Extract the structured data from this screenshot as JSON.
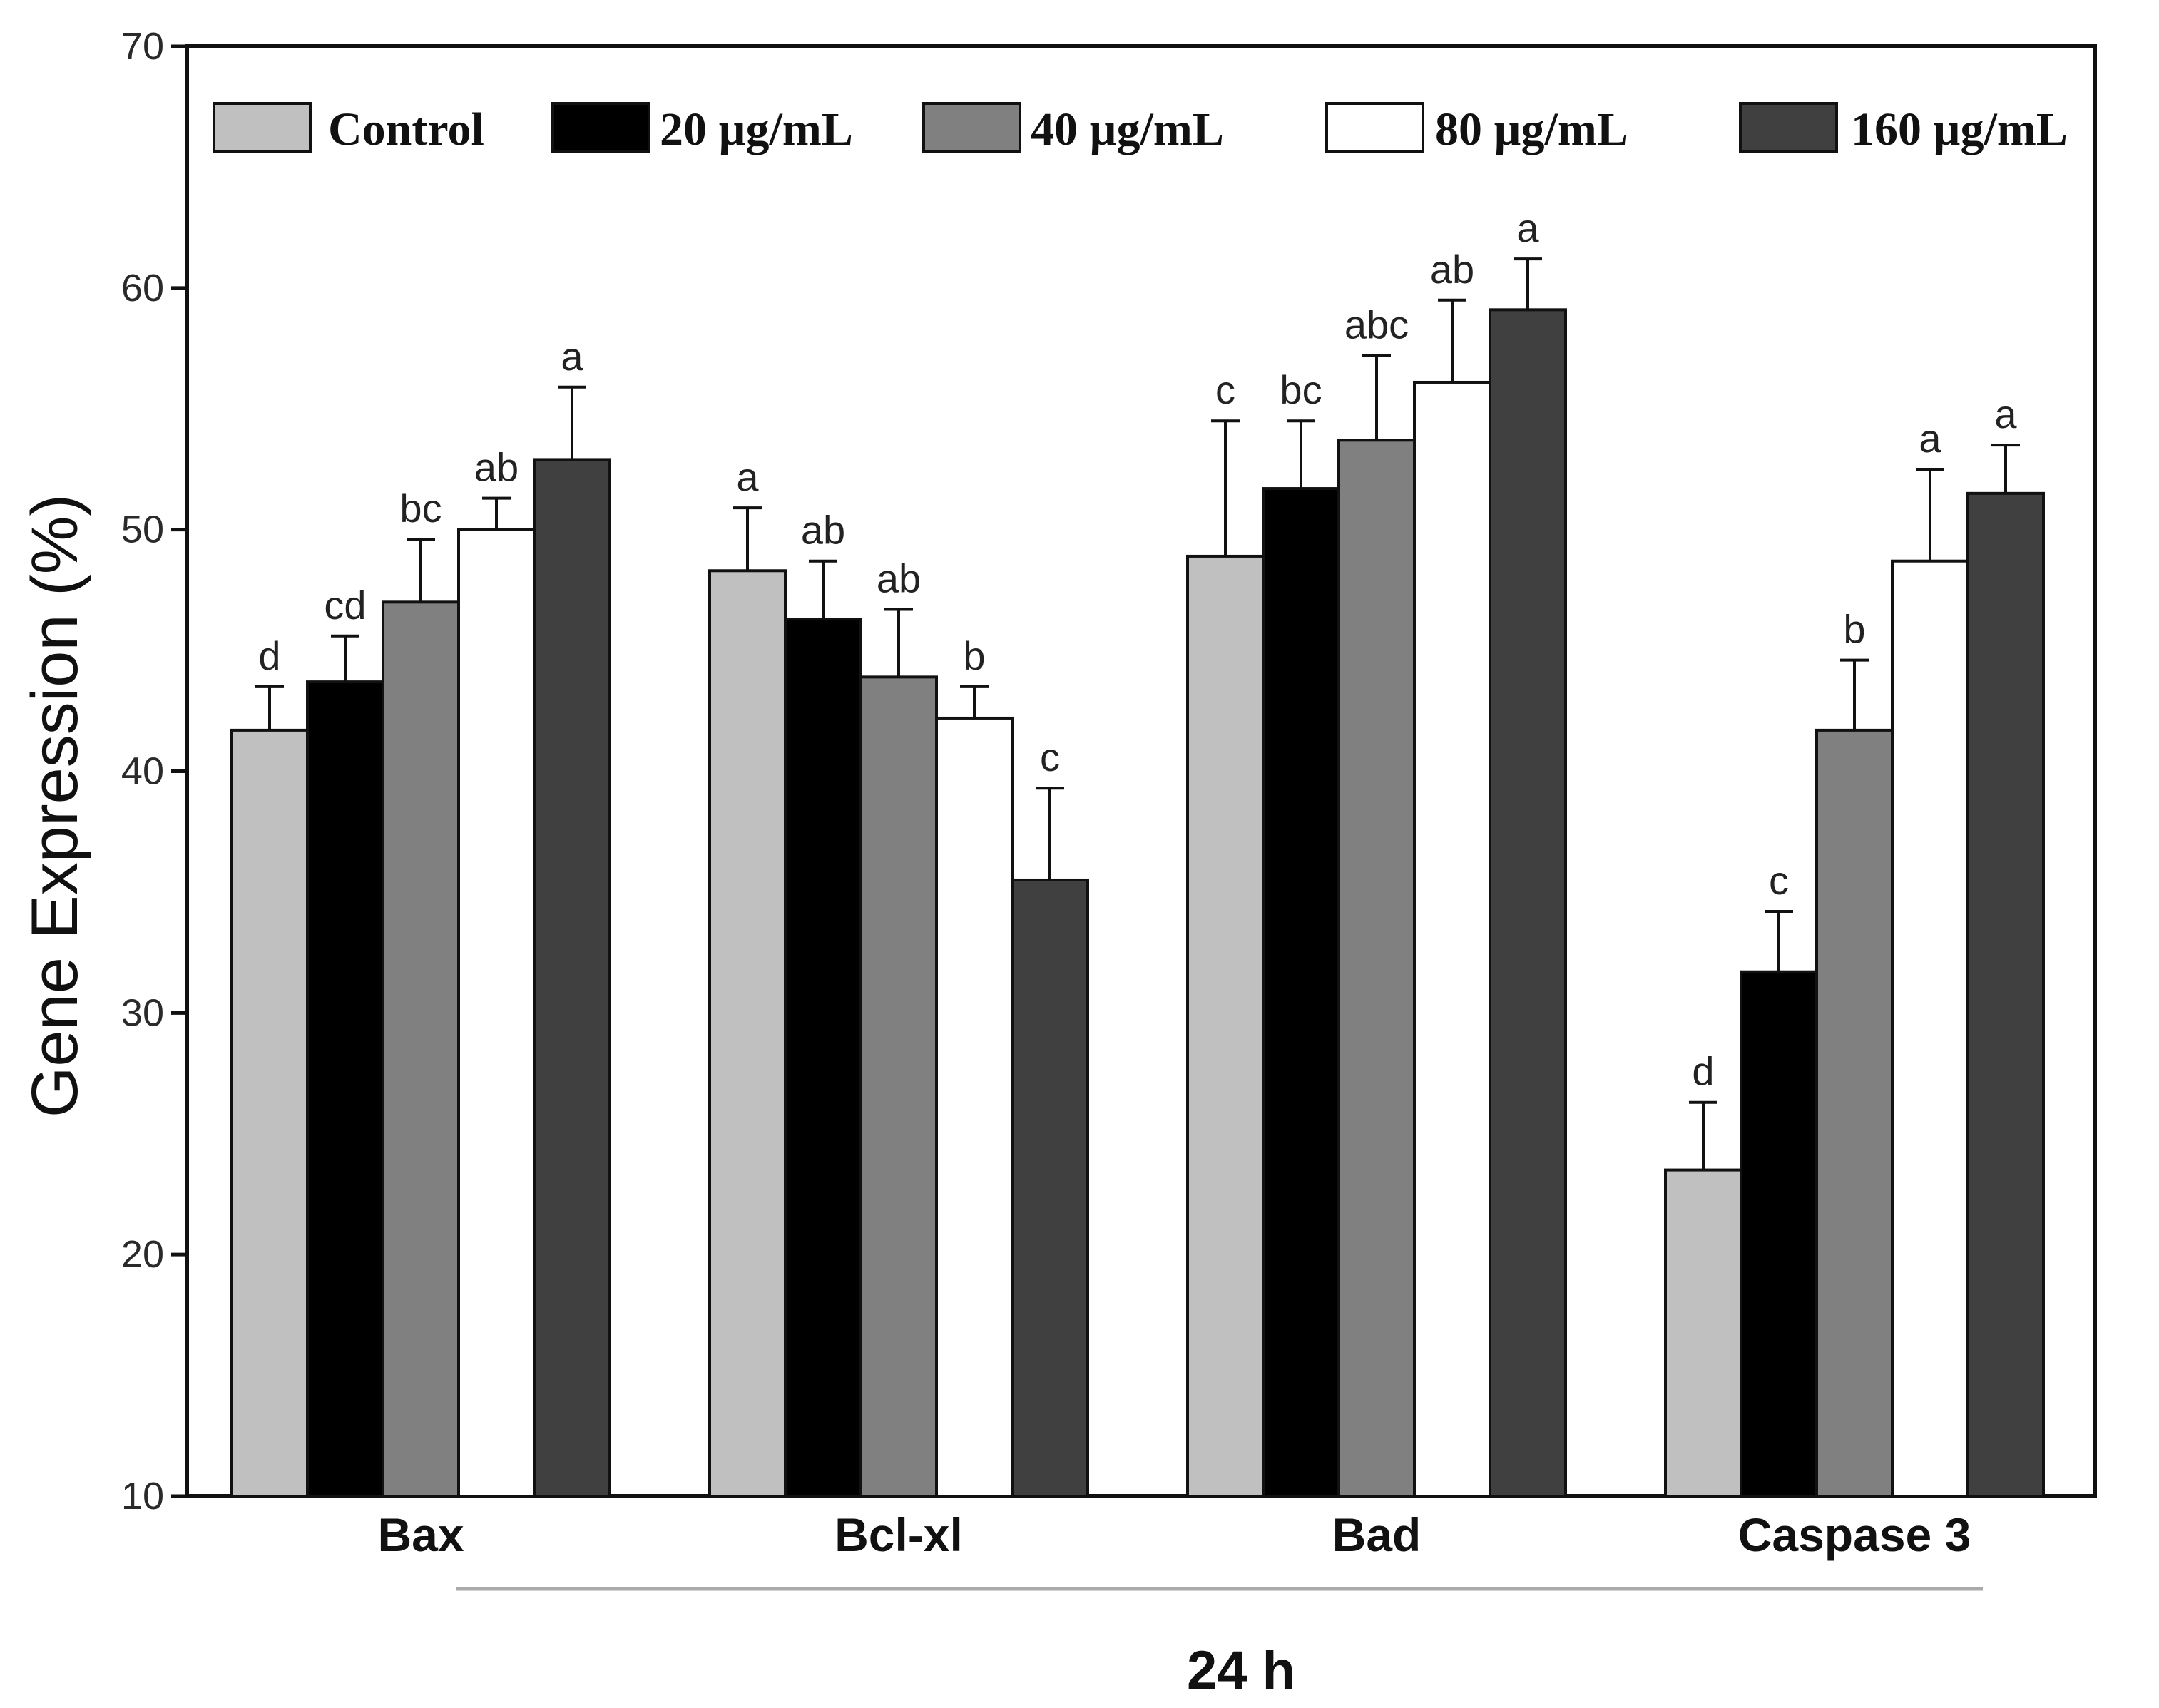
{
  "chart_data": {
    "type": "bar",
    "title": "",
    "xlabel": "24 h",
    "ylabel": "Gene Expression (%)",
    "ylim": [
      10,
      70
    ],
    "yticks": [
      10,
      20,
      30,
      40,
      50,
      60,
      70
    ],
    "grid": false,
    "legend_position": "top",
    "categories": [
      "Bax",
      "Bcl-xl",
      "Bad",
      "Caspase 3"
    ],
    "series": [
      {
        "name": "Control",
        "color": "#c0c0c0",
        "values": [
          41.7,
          48.3,
          48.9,
          23.5
        ],
        "errors": [
          1.8,
          2.6,
          5.6,
          2.8
        ],
        "labels": [
          "d",
          "a",
          "c",
          "d"
        ]
      },
      {
        "name": "20 µg/mL",
        "color": "#000000",
        "values": [
          43.7,
          46.3,
          51.7,
          31.7
        ],
        "errors": [
          1.9,
          2.4,
          2.8,
          2.5
        ],
        "labels": [
          "cd",
          "ab",
          "bc",
          "c"
        ]
      },
      {
        "name": "40 µg/mL",
        "color": "#808080",
        "values": [
          47.0,
          43.9,
          53.7,
          41.7
        ],
        "errors": [
          2.6,
          2.8,
          3.5,
          2.9
        ],
        "labels": [
          "bc",
          "ab",
          "abc",
          "b"
        ]
      },
      {
        "name": "80 µg/mL",
        "color": "#ffffff",
        "values": [
          50.0,
          42.2,
          56.1,
          48.7
        ],
        "errors": [
          1.3,
          1.3,
          3.4,
          3.8
        ],
        "labels": [
          "ab",
          "b",
          "ab",
          "a"
        ]
      },
      {
        "name": "160 µg/mL",
        "color": "#404040",
        "values": [
          52.9,
          35.5,
          59.1,
          51.5
        ],
        "errors": [
          3.0,
          3.8,
          2.1,
          2.0
        ],
        "labels": [
          "a",
          "c",
          "a",
          "a"
        ]
      }
    ]
  }
}
